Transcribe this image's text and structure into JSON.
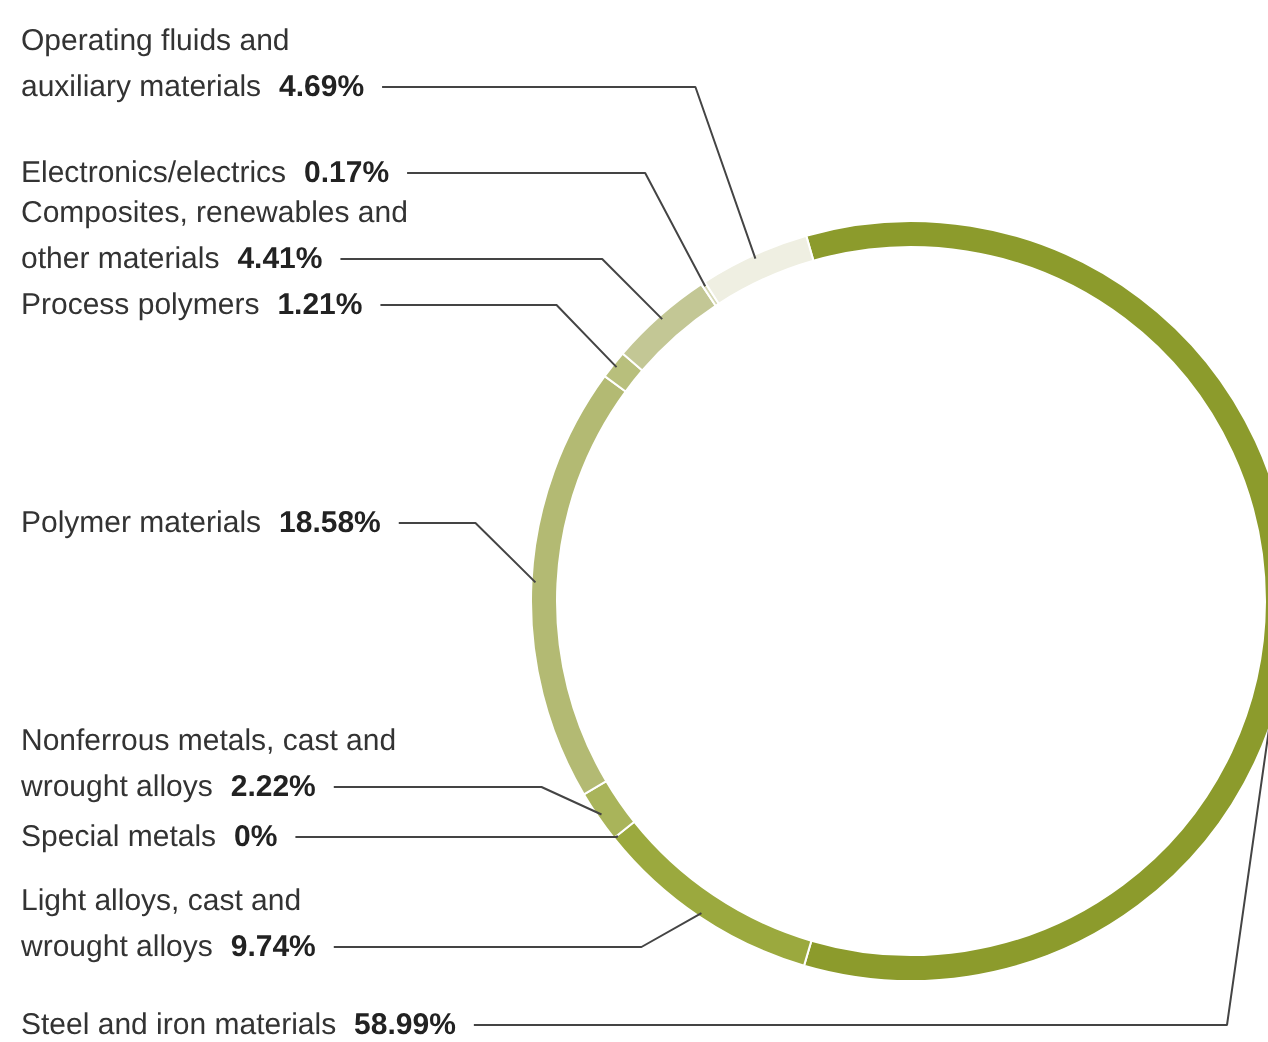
{
  "chart_data": {
    "type": "donut",
    "categories": [
      "Steel and iron materials",
      "Light alloys, cast and\nwrought alloys",
      "Special metals",
      "Nonferrous metals, cast and\nwrought alloys",
      "Polymer materials",
      "Process polymers",
      "Composites, renewables and\nother materials",
      "Electronics/electrics",
      "Operating fluids and\nauxiliary materials"
    ],
    "values": [
      58.99,
      9.74,
      0,
      2.22,
      18.58,
      1.21,
      4.41,
      0.17,
      4.69
    ],
    "value_labels": [
      "58.99%",
      "9.74%",
      "0%",
      "2.22%",
      "18.58%",
      "1.21%",
      "4.41%",
      "0.17%",
      "4.69%"
    ],
    "colors": [
      "#8c9b2c",
      "#9ba93e",
      "#a3af4c",
      "#a9b45a",
      "#b3ba73",
      "#b8bf7c",
      "#c3c795",
      "#d6d8b4",
      "#efefe2"
    ]
  }
}
